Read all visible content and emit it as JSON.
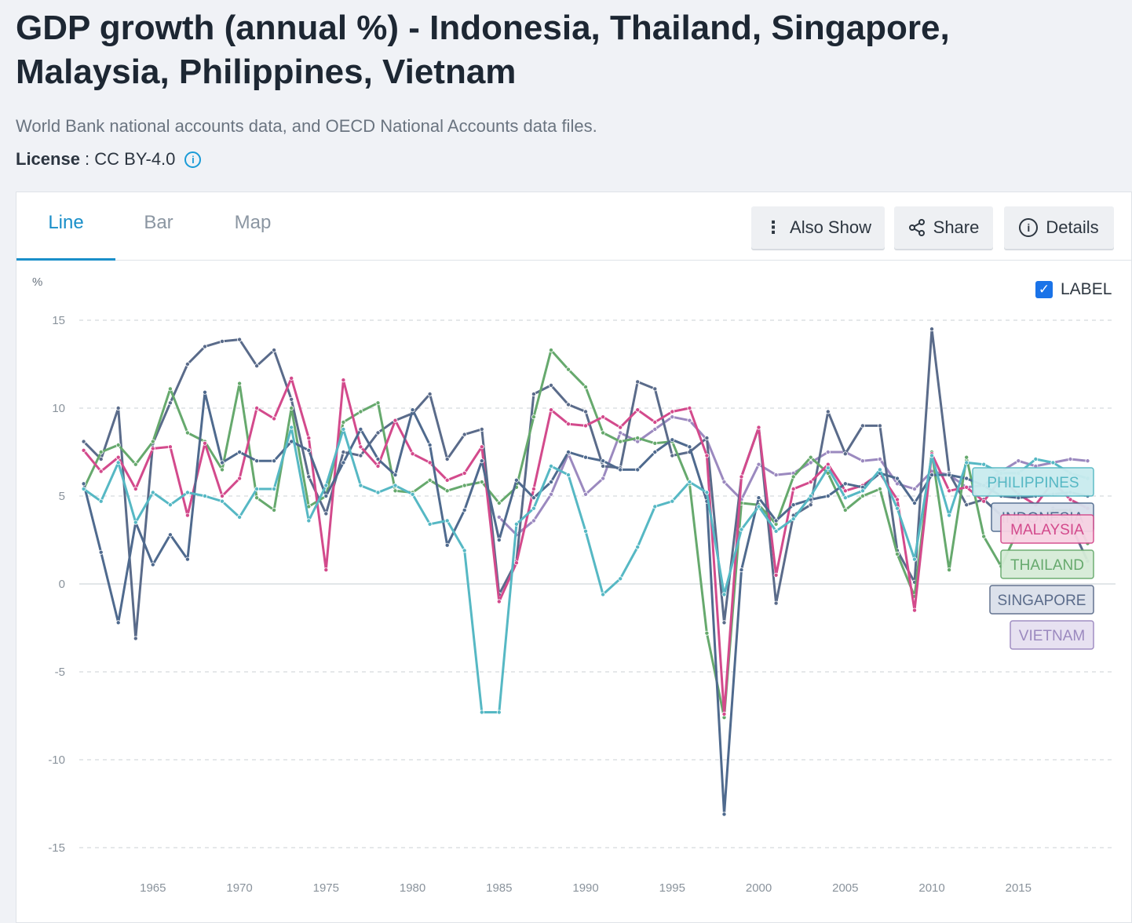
{
  "header": {
    "title": "GDP growth (annual %) - Indonesia, Thailand, Singapore, Malaysia, Philippines, Vietnam",
    "subtitle": "World Bank national accounts data, and OECD National Accounts data files.",
    "license_label": "License",
    "license_value": " : CC BY-4.0",
    "info_icon": "info-circle-icon"
  },
  "tabs": [
    {
      "label": "Line",
      "active": true
    },
    {
      "label": "Bar",
      "active": false
    },
    {
      "label": "Map",
      "active": false
    }
  ],
  "toolbar": {
    "also_show": "Also Show",
    "share": "Share",
    "details": "Details"
  },
  "label_toggle": {
    "label": "LABEL",
    "checked": true
  },
  "chart_data": {
    "type": "line",
    "ylabel": "%",
    "ylim": [
      -15,
      15
    ],
    "yticks": [
      15,
      10,
      5,
      0,
      -5,
      -10,
      -15
    ],
    "xlim": [
      1961,
      2019
    ],
    "xticks": [
      1965,
      1970,
      1975,
      1980,
      1985,
      1990,
      1995,
      2000,
      2005,
      2010,
      2015
    ],
    "grid": true,
    "legend": "right-end labels",
    "series": [
      {
        "name": "PHILIPPINES",
        "color": "#56b8c4",
        "x": [
          1961,
          1962,
          1963,
          1964,
          1965,
          1966,
          1967,
          1968,
          1969,
          1970,
          1971,
          1972,
          1973,
          1974,
          1975,
          1976,
          1977,
          1978,
          1979,
          1980,
          1981,
          1982,
          1983,
          1984,
          1985,
          1986,
          1987,
          1988,
          1989,
          1990,
          1991,
          1992,
          1993,
          1994,
          1995,
          1996,
          1997,
          1998,
          1999,
          2000,
          2001,
          2002,
          2003,
          2004,
          2005,
          2006,
          2007,
          2008,
          2009,
          2010,
          2011,
          2012,
          2013,
          2014,
          2015,
          2016,
          2017,
          2018,
          2019
        ],
        "values": [
          5.4,
          4.7,
          6.9,
          3.5,
          5.2,
          4.5,
          5.2,
          5.0,
          4.7,
          3.8,
          5.4,
          5.4,
          8.9,
          3.6,
          5.6,
          8.8,
          5.6,
          5.2,
          5.6,
          5.1,
          3.4,
          3.6,
          1.9,
          -7.3,
          -7.3,
          3.4,
          4.3,
          6.7,
          6.2,
          3.0,
          -0.6,
          0.3,
          2.1,
          4.4,
          4.7,
          5.8,
          5.2,
          -0.6,
          3.1,
          4.4,
          3.0,
          3.7,
          5.0,
          6.6,
          4.9,
          5.3,
          6.5,
          4.3,
          1.4,
          7.3,
          3.9,
          6.9,
          6.8,
          6.3,
          6.3,
          7.1,
          6.9,
          6.3,
          6.0
        ]
      },
      {
        "name": "INDONESIA",
        "color": "#4f6a8e",
        "x": [
          1961,
          1962,
          1963,
          1964,
          1965,
          1966,
          1967,
          1968,
          1969,
          1970,
          1971,
          1972,
          1973,
          1974,
          1975,
          1976,
          1977,
          1978,
          1979,
          1980,
          1981,
          1982,
          1983,
          1984,
          1985,
          1986,
          1987,
          1988,
          1989,
          1990,
          1991,
          1992,
          1993,
          1994,
          1995,
          1996,
          1997,
          1998,
          1999,
          2000,
          2001,
          2002,
          2003,
          2004,
          2005,
          2006,
          2007,
          2008,
          2009,
          2010,
          2011,
          2012,
          2013,
          2014,
          2015,
          2016,
          2017,
          2018,
          2019
        ],
        "values": [
          5.7,
          1.8,
          -2.2,
          3.5,
          1.1,
          2.8,
          1.4,
          10.9,
          6.9,
          7.5,
          7.0,
          7.0,
          8.1,
          7.6,
          5.0,
          6.9,
          8.8,
          7.1,
          6.2,
          9.9,
          7.9,
          2.2,
          4.2,
          7.0,
          2.5,
          5.9,
          4.9,
          5.8,
          7.5,
          7.2,
          7.0,
          6.5,
          6.5,
          7.5,
          8.2,
          7.8,
          4.7,
          -13.1,
          0.8,
          4.9,
          3.6,
          4.5,
          4.8,
          5.0,
          5.7,
          5.5,
          6.3,
          6.0,
          4.6,
          6.2,
          6.2,
          6.0,
          5.6,
          5.0,
          4.9,
          5.0,
          5.1,
          5.2,
          5.0
        ]
      },
      {
        "name": "MALAYSIA",
        "color": "#d34a8c",
        "x": [
          1961,
          1962,
          1963,
          1964,
          1965,
          1966,
          1967,
          1968,
          1969,
          1970,
          1971,
          1972,
          1973,
          1974,
          1975,
          1976,
          1977,
          1978,
          1979,
          1980,
          1981,
          1982,
          1983,
          1984,
          1985,
          1986,
          1987,
          1988,
          1989,
          1990,
          1991,
          1992,
          1993,
          1994,
          1995,
          1996,
          1997,
          1998,
          1999,
          2000,
          2001,
          2002,
          2003,
          2004,
          2005,
          2006,
          2007,
          2008,
          2009,
          2010,
          2011,
          2012,
          2013,
          2014,
          2015,
          2016,
          2017,
          2018,
          2019
        ],
        "values": [
          7.6,
          6.4,
          7.2,
          5.4,
          7.7,
          7.8,
          3.9,
          8.0,
          5.0,
          6.0,
          10.0,
          9.4,
          11.7,
          8.3,
          0.8,
          11.6,
          7.8,
          6.7,
          9.3,
          7.4,
          6.9,
          5.9,
          6.3,
          7.8,
          -1.0,
          1.2,
          5.4,
          9.9,
          9.1,
          9.0,
          9.5,
          8.9,
          9.9,
          9.2,
          9.8,
          10.0,
          7.3,
          -7.4,
          6.1,
          8.9,
          0.5,
          5.4,
          5.8,
          6.8,
          5.3,
          5.6,
          6.3,
          4.8,
          -1.5,
          7.4,
          5.3,
          5.5,
          4.7,
          6.0,
          5.1,
          4.5,
          5.8,
          4.8,
          4.3
        ]
      },
      {
        "name": "THAILAND",
        "color": "#66a96d",
        "x": [
          1961,
          1962,
          1963,
          1964,
          1965,
          1966,
          1967,
          1968,
          1969,
          1970,
          1971,
          1972,
          1973,
          1974,
          1975,
          1976,
          1977,
          1978,
          1979,
          1980,
          1981,
          1982,
          1983,
          1984,
          1985,
          1986,
          1987,
          1988,
          1989,
          1990,
          1991,
          1992,
          1993,
          1994,
          1995,
          1996,
          1997,
          1998,
          1999,
          2000,
          2001,
          2002,
          2003,
          2004,
          2005,
          2006,
          2007,
          2008,
          2009,
          2010,
          2011,
          2012,
          2013,
          2014,
          2015,
          2016,
          2017,
          2018,
          2019
        ],
        "values": [
          5.4,
          7.5,
          7.9,
          6.8,
          8.1,
          11.1,
          8.6,
          8.1,
          6.5,
          11.4,
          4.9,
          4.2,
          10.0,
          4.4,
          5.0,
          9.2,
          9.8,
          10.3,
          5.3,
          5.2,
          5.9,
          5.3,
          5.6,
          5.8,
          4.6,
          5.5,
          9.5,
          13.3,
          12.2,
          11.2,
          8.6,
          8.1,
          8.3,
          8.0,
          8.1,
          5.7,
          -2.8,
          -7.6,
          4.6,
          4.5,
          3.4,
          6.1,
          7.2,
          6.3,
          4.2,
          5.0,
          5.4,
          1.7,
          -0.7,
          7.5,
          0.8,
          7.2,
          2.7,
          1.0,
          3.1,
          3.4,
          4.2,
          4.2,
          2.3
        ]
      },
      {
        "name": "SINGAPORE",
        "color": "#5a6b8a",
        "x": [
          1961,
          1962,
          1963,
          1964,
          1965,
          1966,
          1967,
          1968,
          1969,
          1970,
          1971,
          1972,
          1973,
          1974,
          1975,
          1976,
          1977,
          1978,
          1979,
          1980,
          1981,
          1982,
          1983,
          1984,
          1985,
          1986,
          1987,
          1988,
          1989,
          1990,
          1991,
          1992,
          1993,
          1994,
          1995,
          1996,
          1997,
          1998,
          1999,
          2000,
          2001,
          2002,
          2003,
          2004,
          2005,
          2006,
          2007,
          2008,
          2009,
          2010,
          2011,
          2012,
          2013,
          2014,
          2015,
          2016,
          2017,
          2018,
          2019
        ],
        "values": [
          8.1,
          7.1,
          10.0,
          -3.1,
          8.0,
          10.3,
          12.5,
          13.5,
          13.8,
          13.9,
          12.4,
          13.3,
          10.5,
          6.1,
          4.0,
          7.5,
          7.3,
          8.6,
          9.3,
          9.7,
          10.8,
          7.1,
          8.5,
          8.8,
          -0.6,
          1.3,
          10.8,
          11.3,
          10.2,
          9.8,
          6.7,
          6.6,
          11.5,
          11.1,
          7.3,
          7.5,
          8.3,
          -2.2,
          6.1,
          8.9,
          -1.1,
          3.9,
          4.5,
          9.8,
          7.4,
          9.0,
          9.0,
          1.9,
          0.1,
          14.5,
          6.3,
          4.5,
          4.8,
          3.9,
          3.0,
          3.2,
          4.3,
          3.4,
          1.3
        ]
      },
      {
        "name": "VIETNAM",
        "color": "#9b89bf",
        "x": [
          1985,
          1986,
          1987,
          1988,
          1989,
          1990,
          1991,
          1992,
          1993,
          1994,
          1995,
          1996,
          1997,
          1998,
          1999,
          2000,
          2001,
          2002,
          2003,
          2004,
          2005,
          2006,
          2007,
          2008,
          2009,
          2010,
          2011,
          2012,
          2013,
          2014,
          2015,
          2016,
          2017,
          2018,
          2019
        ],
        "values": [
          3.8,
          2.8,
          3.6,
          5.1,
          7.4,
          5.1,
          6.0,
          8.6,
          8.1,
          8.8,
          9.5,
          9.3,
          8.2,
          5.8,
          4.8,
          6.8,
          6.2,
          6.3,
          6.9,
          7.5,
          7.5,
          7.0,
          7.1,
          5.7,
          5.4,
          6.4,
          6.2,
          5.5,
          5.6,
          6.4,
          7.0,
          6.7,
          6.9,
          7.1,
          7.0
        ]
      }
    ],
    "end_labels": [
      "PHILIPPINES",
      "INDONESIA",
      "MALAYSIA",
      "THAILAND",
      "SINGAPORE",
      "VIETNAM"
    ]
  }
}
